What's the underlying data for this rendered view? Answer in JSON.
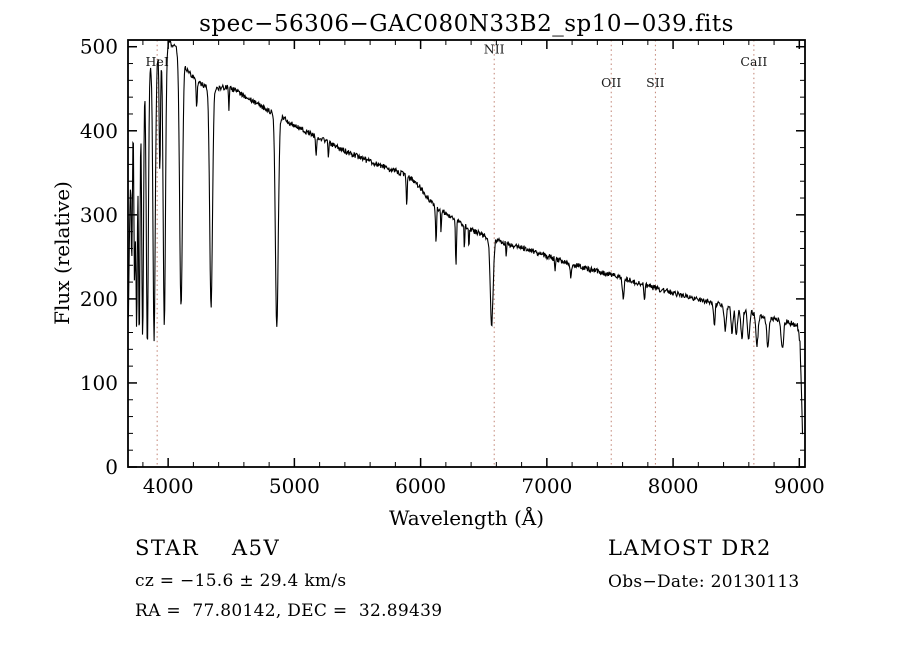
{
  "annotations": {
    "object_class": "STAR    A5V",
    "survey": "LAMOST DR2",
    "cz": "cz = −15.6 ± 29.4 km/s",
    "obs_date": "Obs−Date: 20130113",
    "coords": "RA =  77.80142, DEC =  32.89439"
  },
  "chart_data": {
    "type": "line",
    "title": "spec−56306−GAC080N33B2_sp10−039.fits",
    "xlabel": "Wavelength (Å)",
    "ylabel": "Flux (relative)",
    "xlim": [
      3682,
      9045
    ],
    "ylim": [
      0,
      508
    ],
    "x_data_range": [
      3685,
      9028
    ],
    "xticks": [
      4000,
      5000,
      6000,
      7000,
      8000,
      9000
    ],
    "x_minor_step": 200,
    "yticks": [
      0,
      100,
      200,
      300,
      400,
      500
    ],
    "y_minor_step": 20,
    "grid": false,
    "line_color": "#000000",
    "marker_line_color": "#c08273",
    "marker_label_color": "#1a1a1a",
    "noise_amplitude": 3.2,
    "marker_lines": [
      {
        "label": "HeI",
        "wavelength": 3913,
        "label_flux": 477
      },
      {
        "label": "NII",
        "wavelength": 6583,
        "label_flux": 492
      },
      {
        "label": "OII",
        "wavelength": 7510,
        "label_flux": 452
      },
      {
        "label": "SII",
        "wavelength": 7860,
        "label_flux": 452
      },
      {
        "label": "CaII",
        "wavelength": 8640,
        "label_flux": 477
      }
    ],
    "continuum_points": [
      [
        3682,
        140
      ],
      [
        3692,
        260
      ],
      [
        3705,
        380
      ],
      [
        3725,
        430
      ],
      [
        3760,
        452
      ],
      [
        3800,
        465
      ],
      [
        3850,
        474
      ],
      [
        3900,
        484
      ],
      [
        3950,
        494
      ],
      [
        4010,
        505
      ],
      [
        4060,
        500
      ],
      [
        4150,
        472
      ],
      [
        4250,
        456
      ],
      [
        4350,
        450
      ],
      [
        4480,
        452
      ],
      [
        4600,
        442
      ],
      [
        4750,
        428
      ],
      [
        4900,
        416
      ],
      [
        5000,
        406
      ],
      [
        5200,
        391
      ],
      [
        5400,
        376
      ],
      [
        5600,
        363
      ],
      [
        5800,
        352
      ],
      [
        5900,
        346
      ],
      [
        6000,
        332
      ],
      [
        6100,
        312
      ],
      [
        6250,
        296
      ],
      [
        6400,
        282
      ],
      [
        6550,
        272
      ],
      [
        6700,
        265
      ],
      [
        6900,
        256
      ],
      [
        7100,
        246
      ],
      [
        7300,
        237
      ],
      [
        7500,
        229
      ],
      [
        7700,
        220
      ],
      [
        7900,
        211
      ],
      [
        8100,
        203
      ],
      [
        8300,
        196
      ],
      [
        8500,
        189
      ],
      [
        8700,
        180
      ],
      [
        8900,
        173
      ],
      [
        8985,
        168
      ],
      [
        9005,
        150
      ],
      [
        9018,
        80
      ],
      [
        9028,
        22
      ]
    ],
    "absorption_lines": [
      [
        3712,
        5,
        150
      ],
      [
        3734,
        5,
        210
      ],
      [
        3750,
        6,
        280
      ],
      [
        3771,
        6,
        300
      ],
      [
        3798,
        7,
        310
      ],
      [
        3835,
        8,
        330
      ],
      [
        3889,
        9,
        330
      ],
      [
        3934,
        5,
        140
      ],
      [
        3970,
        9,
        332
      ],
      [
        4102,
        11,
        298
      ],
      [
        4226,
        4,
        35
      ],
      [
        4340,
        11,
        262
      ],
      [
        4481,
        3,
        28
      ],
      [
        4861,
        11,
        255
      ],
      [
        5172,
        4,
        22
      ],
      [
        5270,
        3,
        18
      ],
      [
        5890,
        4,
        35
      ],
      [
        6122,
        4,
        45
      ],
      [
        6162,
        3,
        25
      ],
      [
        6280,
        4,
        55
      ],
      [
        6347,
        3,
        28
      ],
      [
        6383,
        3,
        25
      ],
      [
        6563,
        11,
        102
      ],
      [
        6678,
        3,
        18
      ],
      [
        7065,
        3,
        15
      ],
      [
        7190,
        5,
        18
      ],
      [
        7605,
        7,
        22
      ],
      [
        7773,
        4,
        20
      ],
      [
        8327,
        6,
        25
      ],
      [
        8413,
        8,
        28
      ],
      [
        8467,
        8,
        30
      ],
      [
        8502,
        8,
        32
      ],
      [
        8545,
        8,
        34
      ],
      [
        8598,
        8,
        33
      ],
      [
        8665,
        9,
        36
      ],
      [
        8750,
        9,
        33
      ],
      [
        8865,
        10,
        34
      ]
    ]
  }
}
